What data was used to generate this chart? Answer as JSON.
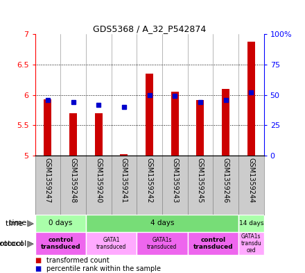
{
  "title": "GDS5368 / A_32_P542874",
  "samples": [
    "GSM1359247",
    "GSM1359248",
    "GSM1359240",
    "GSM1359241",
    "GSM1359242",
    "GSM1359243",
    "GSM1359245",
    "GSM1359246",
    "GSM1359244"
  ],
  "transformed_counts": [
    5.93,
    5.7,
    5.7,
    5.02,
    6.35,
    6.05,
    5.92,
    6.1,
    6.88
  ],
  "percentile_ranks": [
    46,
    44,
    42,
    40,
    50,
    49,
    44,
    46,
    52
  ],
  "ylim_left": [
    5.0,
    7.0
  ],
  "ylim_right": [
    0,
    100
  ],
  "yticks_left": [
    5.0,
    5.5,
    6.0,
    6.5,
    7.0
  ],
  "ytick_labels_left": [
    "5",
    "5.5",
    "6",
    "6.5",
    "7"
  ],
  "ytick_labels_right": [
    "0",
    "25",
    "50",
    "75",
    "100%"
  ],
  "bar_color": "#cc0000",
  "dot_color": "#0000cc",
  "bar_bottom": 5.0,
  "grid_dotted_at": [
    5.5,
    6.0,
    6.5
  ],
  "time_groups": [
    {
      "label": "0 days",
      "start": 0,
      "end": 2,
      "color": "#aaffaa"
    },
    {
      "label": "4 days",
      "start": 2,
      "end": 8,
      "color": "#77dd77"
    },
    {
      "label": "14 days",
      "start": 8,
      "end": 9,
      "color": "#aaffaa"
    }
  ],
  "protocol_groups": [
    {
      "label": "control\ntransduced",
      "start": 0,
      "end": 2,
      "color": "#ee66ee",
      "bold": true
    },
    {
      "label": "GATA1\ntransduced",
      "start": 2,
      "end": 4,
      "color": "#ffaaff",
      "bold": false
    },
    {
      "label": "GATA1s\ntransduced",
      "start": 4,
      "end": 6,
      "color": "#ee66ee",
      "bold": false
    },
    {
      "label": "control\ntransduced",
      "start": 6,
      "end": 8,
      "color": "#ee66ee",
      "bold": true
    },
    {
      "label": "GATA1s\ntransdu\nced",
      "start": 8,
      "end": 9,
      "color": "#ffaaff",
      "bold": false
    }
  ],
  "label_area_bg": "#cccccc",
  "background_color": "#ffffff"
}
